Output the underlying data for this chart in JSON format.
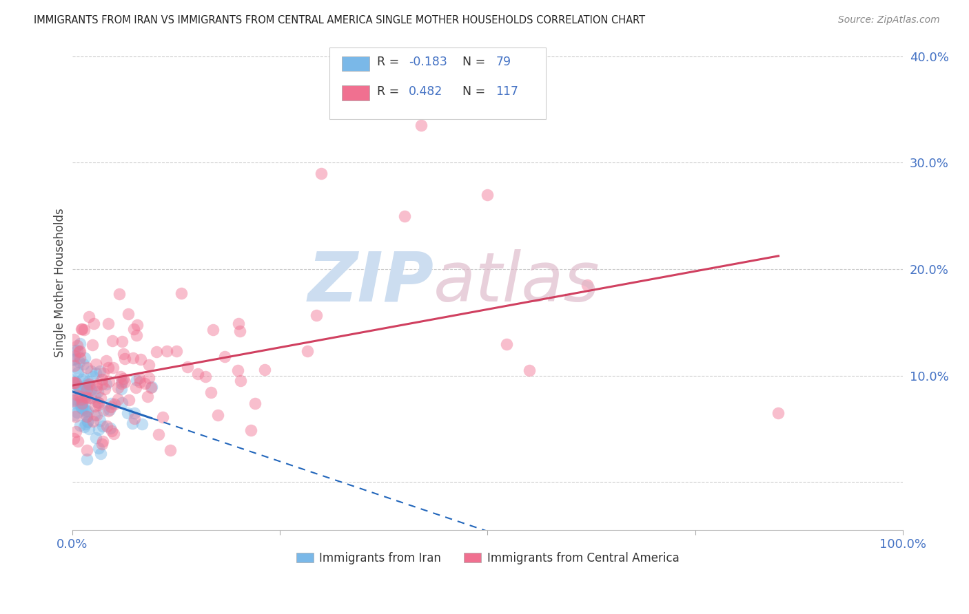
{
  "title": "IMMIGRANTS FROM IRAN VS IMMIGRANTS FROM CENTRAL AMERICA SINGLE MOTHER HOUSEHOLDS CORRELATION CHART",
  "source": "Source: ZipAtlas.com",
  "ylabel": "Single Mother Households",
  "iran_color": "#7ab8e8",
  "iran_line_color": "#2266bb",
  "ca_color": "#f07090",
  "ca_line_color": "#d04060",
  "iran_scatter_alpha": 0.45,
  "ca_scatter_alpha": 0.45,
  "scatter_size": 160,
  "watermark_zip_color": "#ccddf0",
  "watermark_atlas_color": "#ddb8c8",
  "legend_label_iran": "Immigrants from Iran",
  "legend_label_ca": "Immigrants from Central America",
  "iran_legend_label_R": "R = -0.183",
  "iran_legend_label_N": "N =  79",
  "ca_legend_label_R": "R =  0.482",
  "ca_legend_label_N": "N = 117",
  "tick_color": "#4472c4",
  "title_color": "#222222",
  "source_color": "#888888",
  "grid_color": "#cccccc",
  "xlim": [
    0.0,
    1.0
  ],
  "ylim": [
    -0.045,
    0.42
  ],
  "yticks": [
    0.0,
    0.1,
    0.2,
    0.3,
    0.4
  ],
  "ytick_labels": [
    "",
    "10.0%",
    "20.0%",
    "30.0%",
    "40.0%"
  ],
  "xtick_labels": [
    "0.0%",
    "",
    "",
    "",
    "100.0%"
  ]
}
